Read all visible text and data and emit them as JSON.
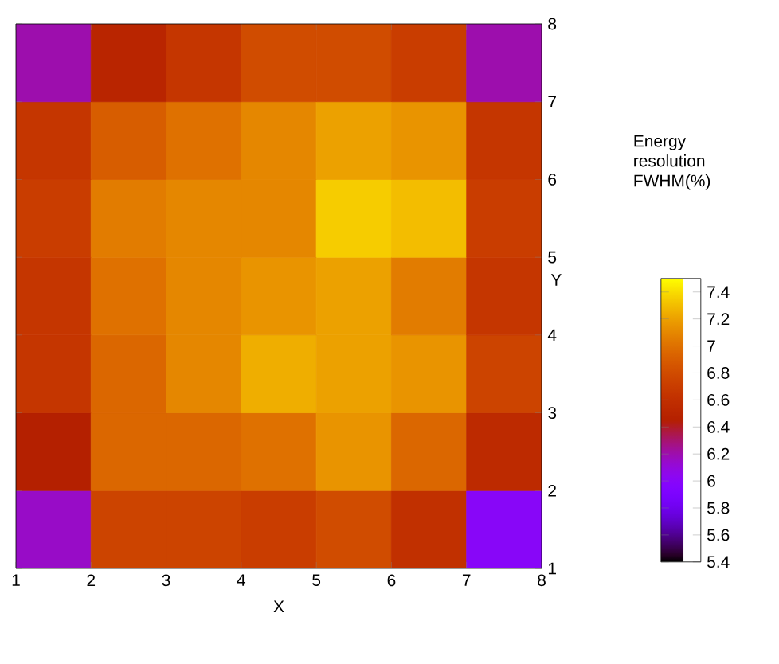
{
  "chart_data": {
    "type": "heatmap",
    "xlabel": "X",
    "ylabel": "Y",
    "clabel": "Energy resolution FWHM(%)",
    "xlim": [
      1,
      8
    ],
    "xticks": [
      1,
      2,
      3,
      4,
      5,
      6,
      7,
      8
    ],
    "ylim": [
      1,
      8
    ],
    "yticks": [
      1,
      2,
      3,
      4,
      5,
      6,
      7,
      8
    ],
    "cells": [
      [
        6.2,
        6.5,
        6.65,
        6.8,
        6.8,
        6.7,
        6.2
      ],
      [
        6.65,
        6.9,
        7.0,
        7.1,
        7.2,
        7.15,
        6.65
      ],
      [
        6.7,
        7.05,
        7.1,
        7.1,
        7.35,
        7.3,
        6.7
      ],
      [
        6.65,
        7.0,
        7.1,
        7.15,
        7.2,
        7.05,
        6.65
      ],
      [
        6.65,
        6.95,
        7.1,
        7.25,
        7.2,
        7.15,
        6.75
      ],
      [
        6.45,
        6.95,
        6.95,
        7.0,
        7.15,
        6.95,
        6.55
      ],
      [
        6.15,
        6.75,
        6.75,
        6.7,
        6.8,
        6.6,
        6.0
      ]
    ],
    "clim": [
      5.4,
      7.5
    ],
    "cticks": [
      5.4,
      5.6,
      5.8,
      6,
      6.2,
      6.4,
      6.6,
      6.8,
      7,
      7.2,
      7.4
    ],
    "tick_labels": "xy"
  }
}
